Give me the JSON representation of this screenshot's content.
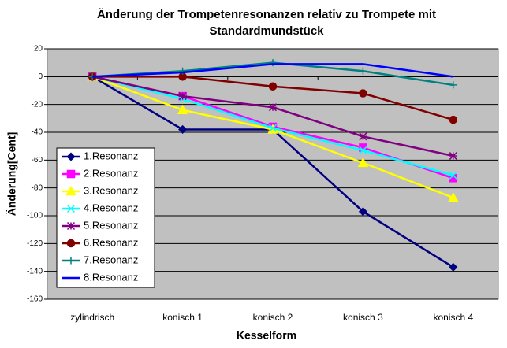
{
  "chart_data": {
    "type": "line",
    "title": [
      "Änderung der Trompetenresonanzen relativ zu Trompete mit",
      "Standardmundstück"
    ],
    "x_label": "Kesselform",
    "y_label": "Änderung[Cent]",
    "categories": [
      "zylindrisch",
      "konisch 1",
      "konisch 2",
      "konisch 3",
      "konisch 4"
    ],
    "ylim": [
      -160,
      20
    ],
    "yticks": [
      -160,
      -140,
      -120,
      -100,
      -80,
      -60,
      -40,
      -20,
      0,
      20
    ],
    "grid": true,
    "legend": "left",
    "series": [
      {
        "name": "1.Resonanz",
        "color": "#000080",
        "marker": "diamond",
        "values": [
          0,
          -38,
          -38,
          -97,
          -137
        ]
      },
      {
        "name": "2.Resonanz",
        "color": "#ff00ff",
        "marker": "square",
        "values": [
          0,
          -14,
          -36,
          -51,
          -73
        ]
      },
      {
        "name": "3.Resonanz",
        "color": "#ffff00",
        "marker": "triangle",
        "values": [
          0,
          -24,
          -38,
          -62,
          -87
        ]
      },
      {
        "name": "4.Resonanz",
        "color": "#00ffff",
        "marker": "x",
        "values": [
          0,
          -16,
          -37,
          -53,
          -71
        ]
      },
      {
        "name": "5.Resonanz",
        "color": "#800080",
        "marker": "star",
        "values": [
          0,
          -14,
          -22,
          -43,
          -57
        ]
      },
      {
        "name": "6.Resonanz",
        "color": "#800000",
        "marker": "circle",
        "values": [
          0,
          0,
          -7,
          -12,
          -31
        ]
      },
      {
        "name": "7.Resonanz",
        "color": "#008080",
        "marker": "plus",
        "values": [
          0,
          4,
          10,
          4,
          -6
        ]
      },
      {
        "name": "8.Resonanz",
        "color": "#0000ff",
        "marker": "none",
        "values": [
          0,
          3,
          9,
          9,
          0
        ]
      }
    ]
  }
}
